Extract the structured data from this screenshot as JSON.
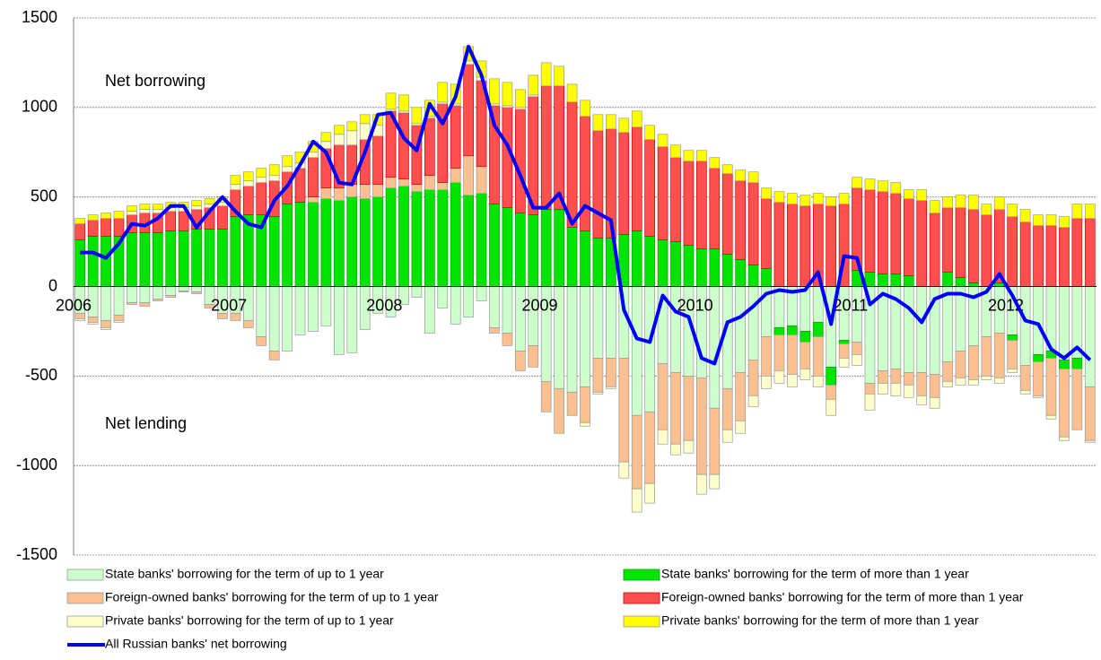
{
  "chart_data": {
    "type": "bar",
    "annotations": [
      "Net borrowing",
      "Net lending"
    ],
    "categories": [
      "2006",
      null,
      null,
      null,
      null,
      null,
      null,
      null,
      null,
      null,
      null,
      null,
      "2007",
      null,
      null,
      null,
      null,
      null,
      null,
      null,
      null,
      null,
      null,
      null,
      "2008",
      null,
      null,
      null,
      null,
      null,
      null,
      null,
      null,
      null,
      null,
      null,
      "2009",
      null,
      null,
      null,
      null,
      null,
      null,
      null,
      null,
      null,
      null,
      null,
      "2010",
      null,
      null,
      null,
      null,
      null,
      null,
      null,
      null,
      null,
      null,
      null,
      "2011",
      null,
      null,
      null,
      null,
      null,
      null,
      null,
      null,
      null,
      null,
      null,
      "2012",
      null,
      null,
      null,
      null,
      null,
      null
    ],
    "series": [
      {
        "name": "State banks' borrowing for the term of up to 1 year",
        "color": "#ccffcc",
        "values": [
          -150,
          -170,
          -190,
          -160,
          -90,
          -90,
          -70,
          -50,
          -25,
          -30,
          -100,
          -150,
          -150,
          -190,
          -280,
          -360,
          -360,
          -270,
          -250,
          -220,
          -380,
          -370,
          -240,
          -150,
          -170,
          -100,
          -60,
          -260,
          -120,
          -210,
          -170,
          -80,
          -230,
          -260,
          -360,
          -330,
          -530,
          -570,
          -590,
          -560,
          -400,
          -400,
          -400,
          -720,
          -700,
          -430,
          -480,
          -500,
          -510,
          -680,
          -570,
          -480,
          -410,
          -280,
          -230,
          -220,
          -250,
          -200,
          -450,
          -300,
          -310,
          -540,
          -470,
          -460,
          -480,
          -480,
          -490,
          -420,
          -360,
          -330,
          -280,
          -260,
          -270,
          -440,
          -380,
          -360,
          -410,
          -400,
          -560
        ]
      },
      {
        "name": "State banks' borrowing for the term of more than 1 year",
        "color": "#00e400",
        "values": [
          260,
          280,
          280,
          280,
          300,
          300,
          300,
          310,
          310,
          320,
          320,
          320,
          390,
          400,
          400,
          390,
          460,
          470,
          470,
          490,
          480,
          500,
          490,
          500,
          550,
          560,
          530,
          540,
          540,
          580,
          510,
          520,
          460,
          440,
          410,
          400,
          430,
          430,
          330,
          310,
          270,
          270,
          290,
          310,
          280,
          260,
          250,
          230,
          210,
          210,
          180,
          150,
          120,
          100,
          -40,
          -50,
          -60,
          -80,
          -100,
          -20,
          90,
          80,
          70,
          70,
          60,
          0,
          0,
          80,
          50,
          20,
          0,
          20,
          -30,
          0,
          -40,
          -40,
          -50,
          -60,
          0
        ]
      },
      {
        "name": "Foreign-owned banks' borrowing for the term of up to 1 year",
        "color": "#fac090",
        "values": [
          -30,
          -30,
          -40,
          -30,
          -10,
          -20,
          -10,
          -10,
          -5,
          -10,
          -20,
          -30,
          -40,
          -40,
          -50,
          -50,
          0,
          0,
          30,
          60,
          70,
          70,
          80,
          70,
          60,
          40,
          40,
          80,
          40,
          80,
          220,
          150,
          -30,
          -70,
          -110,
          -120,
          -170,
          -250,
          -130,
          -200,
          -190,
          -160,
          -580,
          -410,
          -400,
          -370,
          -400,
          -360,
          -540,
          -370,
          -230,
          -270,
          -200,
          -220,
          -200,
          -220,
          -150,
          -220,
          -80,
          -80,
          -70,
          -60,
          -70,
          -80,
          -70,
          -130,
          -130,
          -110,
          -150,
          -190,
          -220,
          -250,
          -160,
          -140,
          -190,
          -320,
          -380,
          -340,
          -300
        ]
      },
      {
        "name": "Foreign-owned banks' borrowing for the term of more than 1 year",
        "color": "#ff5050",
        "values": [
          90,
          90,
          100,
          100,
          100,
          110,
          110,
          110,
          110,
          110,
          120,
          130,
          150,
          160,
          180,
          200,
          180,
          190,
          220,
          220,
          240,
          220,
          250,
          270,
          370,
          370,
          330,
          320,
          440,
          350,
          510,
          480,
          550,
          560,
          580,
          660,
          690,
          690,
          700,
          640,
          600,
          610,
          570,
          580,
          540,
          520,
          470,
          470,
          490,
          450,
          450,
          440,
          460,
          390,
          470,
          460,
          450,
          460,
          450,
          460,
          460,
          460,
          460,
          450,
          430,
          480,
          410,
          360,
          390,
          410,
          400,
          410,
          390,
          360,
          340,
          340,
          330,
          380,
          380
        ]
      },
      {
        "name": "Private banks' borrowing for the term of up to 1 year",
        "color": "#ffffcc",
        "values": [
          -10,
          -10,
          -10,
          -10,
          20,
          20,
          20,
          20,
          20,
          20,
          20,
          20,
          30,
          30,
          30,
          30,
          30,
          30,
          30,
          40,
          60,
          80,
          90,
          60,
          10,
          10,
          10,
          10,
          10,
          10,
          20,
          20,
          10,
          10,
          10,
          10,
          0,
          0,
          0,
          -20,
          -10,
          -10,
          -90,
          -130,
          -110,
          -80,
          -60,
          -70,
          -110,
          -80,
          -70,
          -70,
          -60,
          -70,
          -70,
          -70,
          -60,
          -60,
          -90,
          -50,
          -60,
          -90,
          -60,
          -70,
          -70,
          -50,
          -60,
          -30,
          -40,
          -30,
          -20,
          -30,
          -20,
          -20,
          -10,
          -20,
          -20,
          0,
          -10
        ]
      },
      {
        "name": "Private banks' borrowing for the term of more than 1 year",
        "color": "#ffff00",
        "values": [
          30,
          30,
          30,
          40,
          30,
          30,
          30,
          30,
          30,
          30,
          30,
          30,
          50,
          50,
          50,
          60,
          60,
          60,
          60,
          50,
          50,
          50,
          50,
          60,
          90,
          90,
          90,
          90,
          110,
          110,
          80,
          90,
          140,
          130,
          100,
          110,
          130,
          110,
          100,
          90,
          90,
          80,
          80,
          90,
          80,
          70,
          70,
          60,
          60,
          60,
          50,
          60,
          60,
          60,
          60,
          60,
          60,
          60,
          50,
          60,
          60,
          60,
          60,
          60,
          50,
          60,
          70,
          60,
          70,
          80,
          60,
          70,
          70,
          70,
          60,
          60,
          60,
          80,
          80
        ]
      },
      {
        "name": "All Russian banks' net borrowing",
        "color": "#0000ff",
        "kind": "line",
        "values": [
          190,
          190,
          160,
          240,
          350,
          340,
          380,
          450,
          450,
          330,
          420,
          500,
          420,
          350,
          330,
          480,
          560,
          680,
          810,
          750,
          580,
          570,
          750,
          960,
          970,
          830,
          760,
          1020,
          910,
          1060,
          1340,
          1180,
          900,
          790,
          620,
          440,
          440,
          520,
          350,
          450,
          410,
          370,
          -130,
          -290,
          -310,
          -50,
          -140,
          -170,
          -400,
          -430,
          -200,
          -170,
          -110,
          -40,
          -20,
          -30,
          -20,
          80,
          -210,
          170,
          160,
          -100,
          -40,
          -70,
          -120,
          -200,
          -70,
          -40,
          -40,
          -60,
          -30,
          70,
          -50,
          -190,
          -210,
          -350,
          -400,
          -340,
          -410
        ]
      }
    ],
    "ylim": [
      -1500,
      1500
    ],
    "yticks": [
      -1500,
      -1000,
      -500,
      0,
      500,
      1000,
      1500
    ],
    "grid": true
  }
}
